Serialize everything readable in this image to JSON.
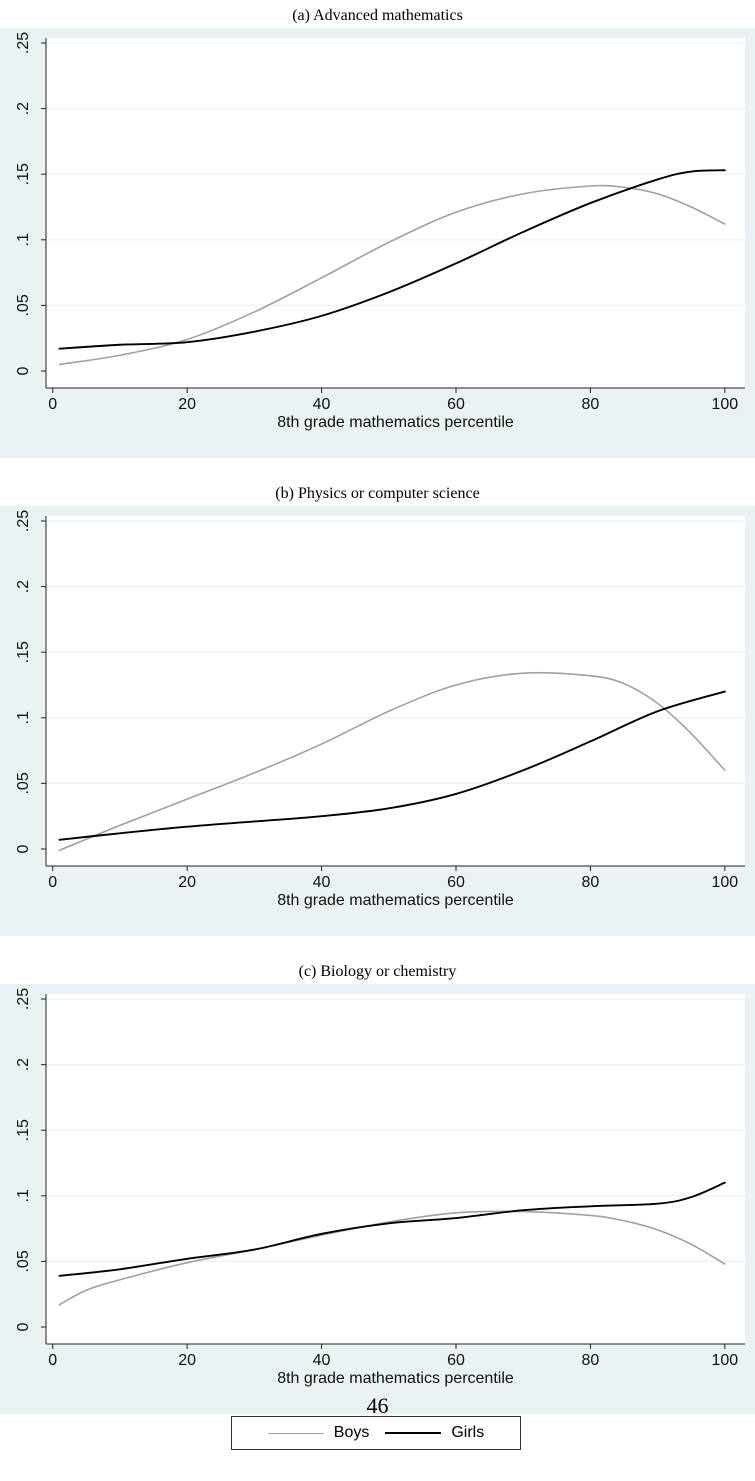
{
  "page_number": "46",
  "legend": {
    "boys_label": "Boys",
    "girls_label": "Girls"
  },
  "colors": {
    "boys": "#a0a0a0",
    "girls": "#000000",
    "plot_background": "#ffffff",
    "outer_background": "#eaf2f3",
    "grid": "#eaf2f3"
  },
  "chart_data": [
    {
      "type": "line",
      "title": "(a) Advanced mathematics",
      "xlabel": "8th grade mathematics percentile",
      "ylabel": "",
      "xlim": [
        1,
        100
      ],
      "ylim": [
        0,
        0.25
      ],
      "x_ticks": [
        "0",
        "20",
        "40",
        "60",
        "80",
        "100"
      ],
      "y_ticks": [
        "0",
        ".05",
        ".1",
        ".15",
        ".2",
        ".25"
      ],
      "grid": true,
      "legend": "bottom-center",
      "series": [
        {
          "name": "Boys",
          "x": [
            1,
            10,
            20,
            30,
            40,
            50,
            60,
            70,
            80,
            85,
            90,
            95,
            100
          ],
          "y": [
            0.005,
            0.012,
            0.024,
            0.045,
            0.071,
            0.098,
            0.121,
            0.135,
            0.141,
            0.14,
            0.135,
            0.125,
            0.112
          ]
        },
        {
          "name": "Girls",
          "x": [
            1,
            10,
            20,
            30,
            40,
            50,
            60,
            70,
            80,
            90,
            95,
            100
          ],
          "y": [
            0.017,
            0.02,
            0.022,
            0.03,
            0.042,
            0.06,
            0.082,
            0.106,
            0.128,
            0.146,
            0.152,
            0.153
          ]
        }
      ]
    },
    {
      "type": "line",
      "title": "(b) Physics or computer science",
      "xlabel": "8th grade mathematics percentile",
      "ylabel": "",
      "xlim": [
        1,
        100
      ],
      "ylim": [
        0,
        0.25
      ],
      "x_ticks": [
        "0",
        "20",
        "40",
        "60",
        "80",
        "100"
      ],
      "y_ticks": [
        "0",
        ".05",
        ".1",
        ".15",
        ".2",
        ".25"
      ],
      "grid": true,
      "legend": "bottom-center",
      "series": [
        {
          "name": "Boys",
          "x": [
            1,
            10,
            20,
            30,
            40,
            50,
            60,
            70,
            80,
            85,
            90,
            95,
            100
          ],
          "y": [
            -0.001,
            0.018,
            0.038,
            0.058,
            0.08,
            0.105,
            0.125,
            0.134,
            0.132,
            0.126,
            0.111,
            0.088,
            0.06
          ]
        },
        {
          "name": "Girls",
          "x": [
            1,
            10,
            20,
            30,
            40,
            50,
            60,
            70,
            80,
            90,
            100
          ],
          "y": [
            0.007,
            0.012,
            0.017,
            0.021,
            0.025,
            0.031,
            0.042,
            0.06,
            0.082,
            0.105,
            0.12
          ]
        }
      ]
    },
    {
      "type": "line",
      "title": "(c) Biology or chemistry",
      "xlabel": "8th grade mathematics percentile",
      "ylabel": "",
      "xlim": [
        1,
        100
      ],
      "ylim": [
        0,
        0.25
      ],
      "x_ticks": [
        "0",
        "20",
        "40",
        "60",
        "80",
        "100"
      ],
      "y_ticks": [
        "0",
        ".05",
        ".1",
        ".15",
        ".2",
        ".25"
      ],
      "grid": true,
      "legend": "bottom-center",
      "series": [
        {
          "name": "Boys",
          "x": [
            1,
            5,
            10,
            20,
            30,
            40,
            50,
            60,
            70,
            80,
            85,
            90,
            95,
            100
          ],
          "y": [
            0.017,
            0.028,
            0.036,
            0.049,
            0.059,
            0.07,
            0.08,
            0.087,
            0.088,
            0.085,
            0.081,
            0.074,
            0.063,
            0.048
          ]
        },
        {
          "name": "Girls",
          "x": [
            1,
            10,
            20,
            30,
            40,
            50,
            60,
            70,
            80,
            90,
            95,
            100
          ],
          "y": [
            0.039,
            0.044,
            0.052,
            0.059,
            0.071,
            0.079,
            0.083,
            0.089,
            0.092,
            0.094,
            0.099,
            0.11
          ]
        }
      ]
    }
  ]
}
